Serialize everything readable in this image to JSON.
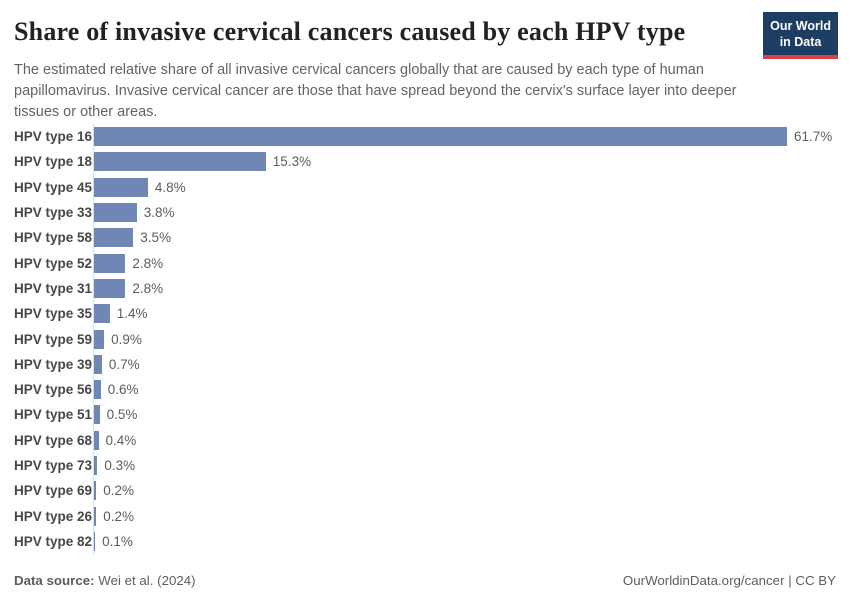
{
  "header": {
    "title": "Share of invasive cervical cancers caused by each HPV type",
    "subtitle": "The estimated relative share of all invasive cervical cancers globally that are caused by each type of human papillomavirus. Invasive cervical cancer are those that have spread beyond the cervix's surface layer into deeper tissues or other areas.",
    "logo_line1": "Our World",
    "logo_line2": "in Data"
  },
  "chart_data": {
    "type": "bar",
    "orientation": "horizontal",
    "title": "Share of invasive cervical cancers caused by each HPV type",
    "categories": [
      "HPV type 16",
      "HPV type 18",
      "HPV type 45",
      "HPV type 33",
      "HPV type 58",
      "HPV type 52",
      "HPV type 31",
      "HPV type 35",
      "HPV type 59",
      "HPV type 39",
      "HPV type 56",
      "HPV type 51",
      "HPV type 68",
      "HPV type 73",
      "HPV type 69",
      "HPV type 26",
      "HPV type 82"
    ],
    "values": [
      61.7,
      15.3,
      4.8,
      3.8,
      3.5,
      2.8,
      2.8,
      1.4,
      0.9,
      0.7,
      0.6,
      0.5,
      0.4,
      0.3,
      0.2,
      0.2,
      0.1
    ],
    "value_labels": [
      "61.7%",
      "15.3%",
      "4.8%",
      "3.8%",
      "3.5%",
      "2.8%",
      "2.8%",
      "1.4%",
      "0.9%",
      "0.7%",
      "0.6%",
      "0.5%",
      "0.4%",
      "0.3%",
      "0.2%",
      "0.2%",
      "0.1%"
    ],
    "unit": "%",
    "xlim": [
      0,
      65
    ],
    "grid": false,
    "legend": false,
    "value_labels_position": "end-of-bar",
    "bar_color": "#7086b4"
  },
  "footer": {
    "source_label": "Data source:",
    "source_value": "Wei et al. (2024)",
    "url": "OurWorldinData.org/cancer",
    "separator": " | ",
    "license": "CC BY"
  },
  "colors": {
    "bar": "#7086b4",
    "logo_background": "#1d3d63",
    "logo_accent": "#d8404a",
    "title_text": "#222222",
    "muted_text": "#636363",
    "axis_line": "#dcdcdc"
  }
}
